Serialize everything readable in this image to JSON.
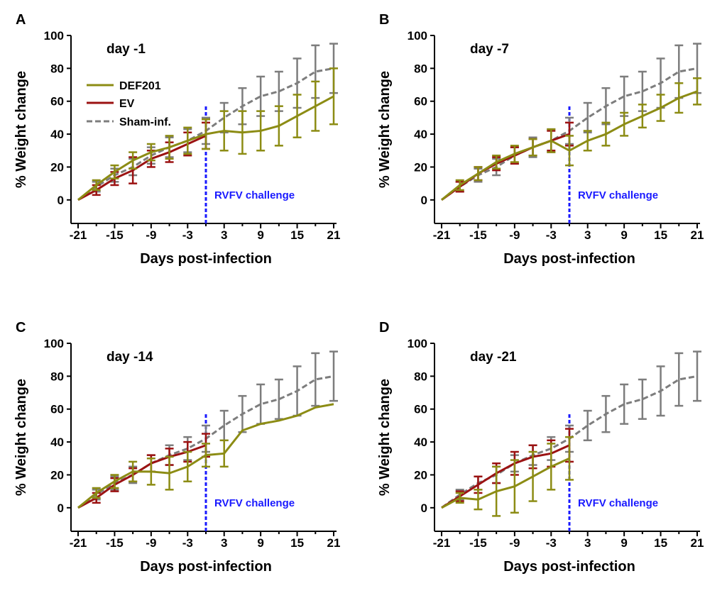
{
  "figure": {
    "x_ticks": [
      "-21",
      "-15",
      "-9",
      "-3",
      "3",
      "9",
      "15",
      "21"
    ],
    "y_ticks": [
      "0",
      "20",
      "40",
      "60",
      "80",
      "100"
    ],
    "xlabel": "Days post-infection",
    "ylabel": "% Weight change",
    "challenge_label": "RVFV challenge"
  },
  "legend": {
    "def201": "DEF201",
    "ev": "EV",
    "sham": "Sham-inf."
  },
  "colors": {
    "def201": "#8c8c14",
    "ev": "#9b1212",
    "sham": "#7d7d7d",
    "challenge": "#1a1aff"
  },
  "chart_data": [
    {
      "type": "line",
      "panel": "A",
      "title": "day -1",
      "xlabel": "Days post-infection",
      "ylabel": "% Weight change",
      "xlim": [
        -21,
        21
      ],
      "ylim": [
        -10,
        100
      ],
      "challenge_day": 0,
      "series": [
        {
          "name": "Sham-inf.",
          "key": "sham",
          "x": [
            -21,
            -18,
            -15,
            -12,
            -9,
            -6,
            -3,
            0,
            3,
            6,
            9,
            12,
            15,
            18,
            21
          ],
          "values": [
            0,
            8,
            15,
            20,
            27,
            32,
            36,
            42,
            50,
            57,
            63,
            66,
            71,
            78,
            80
          ],
          "errors": [
            0,
            3,
            4,
            5,
            5,
            6,
            7,
            8,
            9,
            11,
            12,
            12,
            15,
            16,
            15
          ]
        },
        {
          "name": "EV",
          "key": "ev",
          "x": [
            -21,
            -18,
            -15,
            -12,
            -9,
            -6,
            -3,
            0
          ],
          "values": [
            0,
            6,
            13,
            18,
            25,
            29,
            34,
            39
          ],
          "errors": [
            0,
            3,
            4,
            8,
            5,
            6,
            7,
            8
          ]
        },
        {
          "name": "DEF201",
          "key": "def201",
          "x": [
            -21,
            -18,
            -15,
            -12,
            -9,
            -6,
            -3,
            0,
            3,
            6,
            9,
            12,
            15,
            18,
            21
          ],
          "values": [
            0,
            9,
            17,
            24,
            29,
            32,
            36,
            40,
            42,
            41,
            42,
            45,
            51,
            57,
            63
          ],
          "errors": [
            0,
            3,
            4,
            5,
            5,
            7,
            8,
            9,
            12,
            13,
            12,
            12,
            13,
            15,
            17
          ]
        }
      ]
    },
    {
      "type": "line",
      "panel": "B",
      "title": "day -7",
      "xlabel": "Days post-infection",
      "ylabel": "% Weight change",
      "xlim": [
        -21,
        21
      ],
      "ylim": [
        -10,
        100
      ],
      "challenge_day": 0,
      "series": [
        {
          "name": "Sham-inf.",
          "key": "sham",
          "x": [
            -21,
            -18,
            -15,
            -12,
            -9,
            -6,
            -3,
            0,
            3,
            6,
            9,
            12,
            15,
            18,
            21
          ],
          "values": [
            0,
            8,
            15,
            20,
            27,
            32,
            36,
            42,
            50,
            57,
            63,
            66,
            71,
            78,
            80
          ],
          "errors": [
            0,
            3,
            4,
            5,
            5,
            6,
            7,
            8,
            9,
            11,
            12,
            12,
            15,
            16,
            15
          ]
        },
        {
          "name": "EV",
          "key": "ev",
          "x": [
            -21,
            -18,
            -15,
            -12,
            -9,
            -6,
            -3,
            0
          ],
          "values": [
            0,
            8,
            16,
            22,
            27,
            32,
            36,
            40
          ],
          "errors": [
            0,
            3,
            4,
            4,
            5,
            5,
            6,
            7
          ]
        },
        {
          "name": "DEF201",
          "key": "def201",
          "x": [
            -21,
            -18,
            -15,
            -12,
            -9,
            -6,
            -3,
            0,
            3,
            6,
            9,
            12,
            15,
            18,
            21
          ],
          "values": [
            0,
            9,
            16,
            23,
            28,
            32,
            36,
            30,
            36,
            40,
            46,
            51,
            56,
            62,
            66
          ],
          "errors": [
            0,
            3,
            4,
            4,
            5,
            5,
            7,
            9,
            6,
            7,
            7,
            7,
            8,
            9,
            8
          ]
        }
      ]
    },
    {
      "type": "line",
      "panel": "C",
      "title": "day -14",
      "xlabel": "Days post-infection",
      "ylabel": "% Weight change",
      "xlim": [
        -21,
        21
      ],
      "ylim": [
        -10,
        100
      ],
      "challenge_day": 0,
      "series": [
        {
          "name": "Sham-inf.",
          "key": "sham",
          "x": [
            -21,
            -18,
            -15,
            -12,
            -9,
            -6,
            -3,
            0,
            3,
            6,
            9,
            12,
            15,
            18,
            21
          ],
          "values": [
            0,
            8,
            15,
            20,
            27,
            32,
            36,
            42,
            50,
            57,
            63,
            66,
            71,
            78,
            80
          ],
          "errors": [
            0,
            3,
            4,
            5,
            5,
            6,
            7,
            8,
            9,
            11,
            12,
            12,
            15,
            16,
            15
          ]
        },
        {
          "name": "EV",
          "key": "ev",
          "x": [
            -21,
            -18,
            -15,
            -12,
            -9,
            -6,
            -3,
            0
          ],
          "values": [
            0,
            6,
            14,
            20,
            27,
            31,
            34,
            38
          ],
          "errors": [
            0,
            3,
            4,
            4,
            5,
            5,
            6,
            7
          ]
        },
        {
          "name": "DEF201",
          "key": "def201",
          "x": [
            -21,
            -18,
            -15,
            -12,
            -9,
            -6,
            -3,
            0,
            3,
            6,
            9,
            12,
            15,
            18,
            21
          ],
          "values": [
            0,
            9,
            16,
            22,
            22,
            21,
            25,
            32,
            33,
            47,
            51,
            53,
            56,
            61,
            63
          ],
          "errors": [
            0,
            3,
            4,
            6,
            8,
            10,
            9,
            7,
            8,
            0,
            0,
            0,
            0,
            0,
            0
          ]
        }
      ]
    },
    {
      "type": "line",
      "panel": "D",
      "title": "day -21",
      "xlabel": "Days post-infection",
      "ylabel": "% Weight change",
      "xlim": [
        -21,
        21
      ],
      "ylim": [
        -10,
        100
      ],
      "challenge_day": 0,
      "series": [
        {
          "name": "Sham-inf.",
          "key": "sham",
          "x": [
            -21,
            -18,
            -15,
            -12,
            -9,
            -6,
            -3,
            0,
            3,
            6,
            9,
            12,
            15,
            18,
            21
          ],
          "values": [
            0,
            8,
            15,
            20,
            27,
            32,
            36,
            42,
            50,
            57,
            63,
            66,
            71,
            78,
            80
          ],
          "errors": [
            0,
            3,
            4,
            5,
            5,
            6,
            7,
            8,
            9,
            11,
            12,
            12,
            15,
            16,
            15
          ]
        },
        {
          "name": "EV",
          "key": "ev",
          "x": [
            -21,
            -18,
            -15,
            -12,
            -9,
            -6,
            -3,
            0
          ],
          "values": [
            0,
            7,
            14,
            21,
            27,
            31,
            33,
            38
          ],
          "errors": [
            0,
            3,
            5,
            6,
            7,
            7,
            8,
            10
          ]
        },
        {
          "name": "DEF201",
          "key": "def201",
          "x": [
            -21,
            -18,
            -15,
            -12,
            -9,
            -6,
            -3,
            0
          ],
          "values": [
            0,
            6,
            5,
            10,
            13,
            19,
            25,
            30
          ],
          "errors": [
            0,
            3,
            6,
            15,
            16,
            15,
            14,
            13
          ]
        }
      ]
    }
  ]
}
